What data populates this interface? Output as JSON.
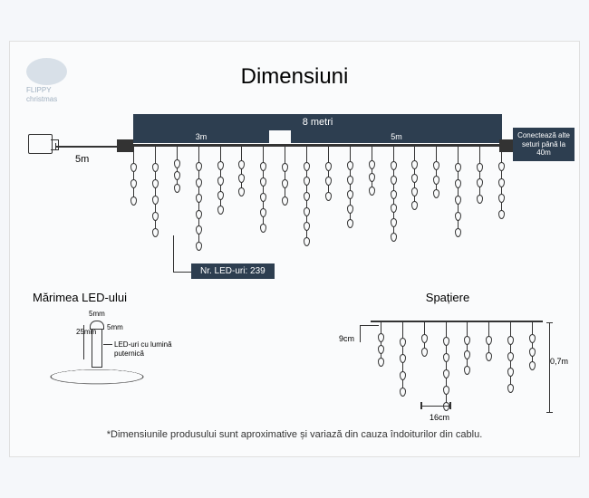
{
  "title": "Dimensiuni",
  "logo": {
    "line1": "FLIPPY",
    "line2": "christmas"
  },
  "main": {
    "total_length": "8 metri",
    "segment_a": "3m",
    "segment_b": "5m",
    "lead_cable": "5m",
    "led_count_label": "Nr. LED-uri: 239",
    "connect_text": "Conectează alte seturi până la 40m",
    "strand_heights": [
      60,
      95,
      45,
      110,
      70,
      50,
      90,
      60,
      105,
      55,
      85,
      48,
      100,
      65,
      52,
      95,
      58,
      75
    ],
    "colors": {
      "box_bg": "#2d3e50",
      "box_fg": "#ffffff",
      "line": "#333333",
      "bg": "#fafbfc"
    }
  },
  "led_size": {
    "title": "Mărimea LED-ului",
    "height": "25mm",
    "width": "5mm",
    "top": "5mm",
    "desc": "LED-uri cu lumină puternică"
  },
  "spacing": {
    "title": "Spațiere",
    "gap_v": "9cm",
    "gap_h": "16cm",
    "drop": "0,7m",
    "strand_heights": [
      45,
      80,
      35,
      95,
      55,
      40,
      75,
      50
    ]
  },
  "footnote": "*Dimensiunile produsului sunt aproximative și variază din cauza îndoiturilor din cablu."
}
